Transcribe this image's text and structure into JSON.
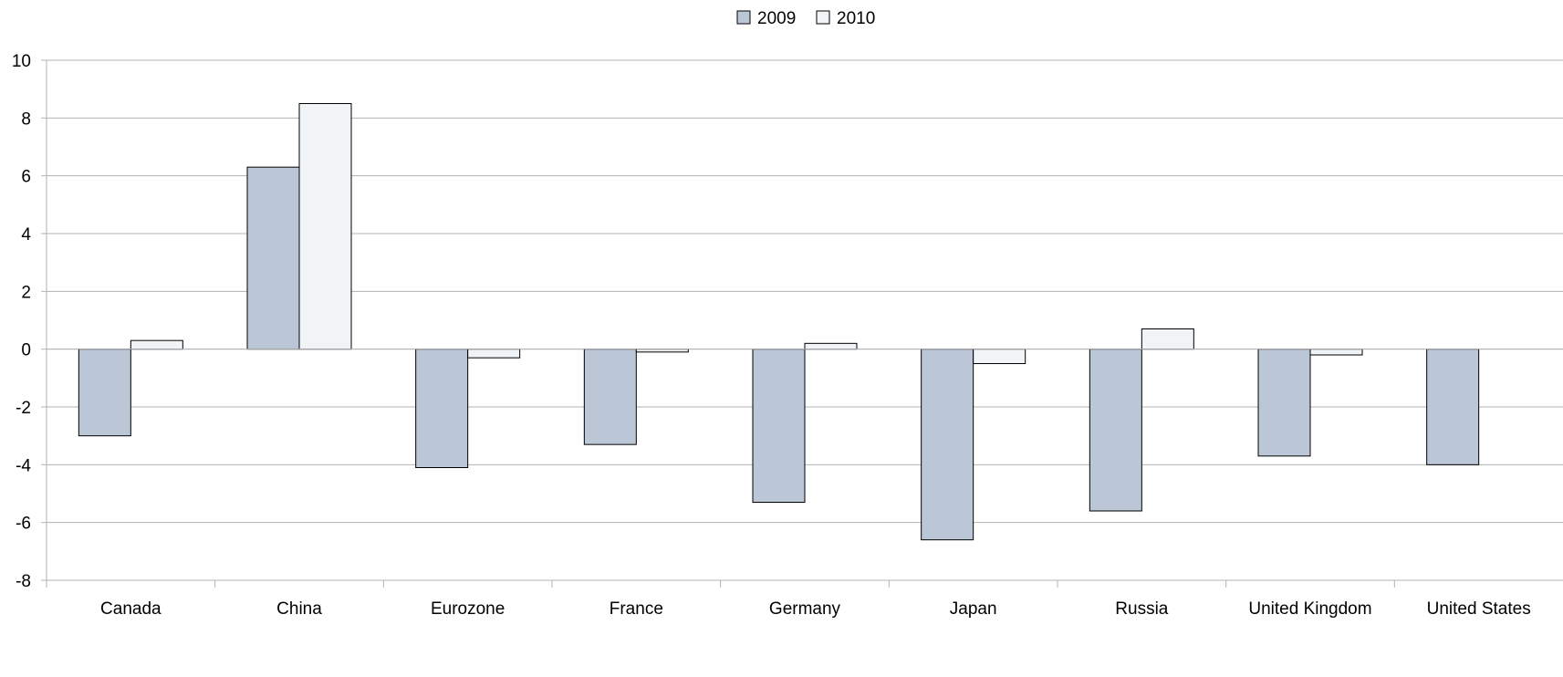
{
  "chart_data": {
    "type": "bar",
    "title": "",
    "xlabel": "",
    "ylabel": "",
    "categories": [
      "Canada",
      "China",
      "Eurozone",
      "France",
      "Germany",
      "Japan",
      "Russia",
      "United Kingdom",
      "United States"
    ],
    "series": [
      {
        "name": "2009",
        "color": "#bbc7d6",
        "values": [
          -3.0,
          6.3,
          -4.1,
          -3.3,
          -5.3,
          -6.6,
          -5.6,
          -3.7,
          -4.0
        ]
      },
      {
        "name": "2010",
        "color": "#f1f4f7",
        "values": [
          0.3,
          8.5,
          -0.3,
          -0.1,
          0.2,
          -0.5,
          0.7,
          -0.2,
          null
        ]
      }
    ],
    "ylim": [
      -8,
      10
    ],
    "yticks": [
      -8,
      -6,
      -4,
      -2,
      0,
      2,
      4,
      6,
      8,
      10
    ],
    "grid": true,
    "legend_position": "top-center",
    "colors": {
      "grid": "#b3b3b3",
      "axis": "#b3b3b3",
      "bar_stroke": "#000000"
    }
  }
}
